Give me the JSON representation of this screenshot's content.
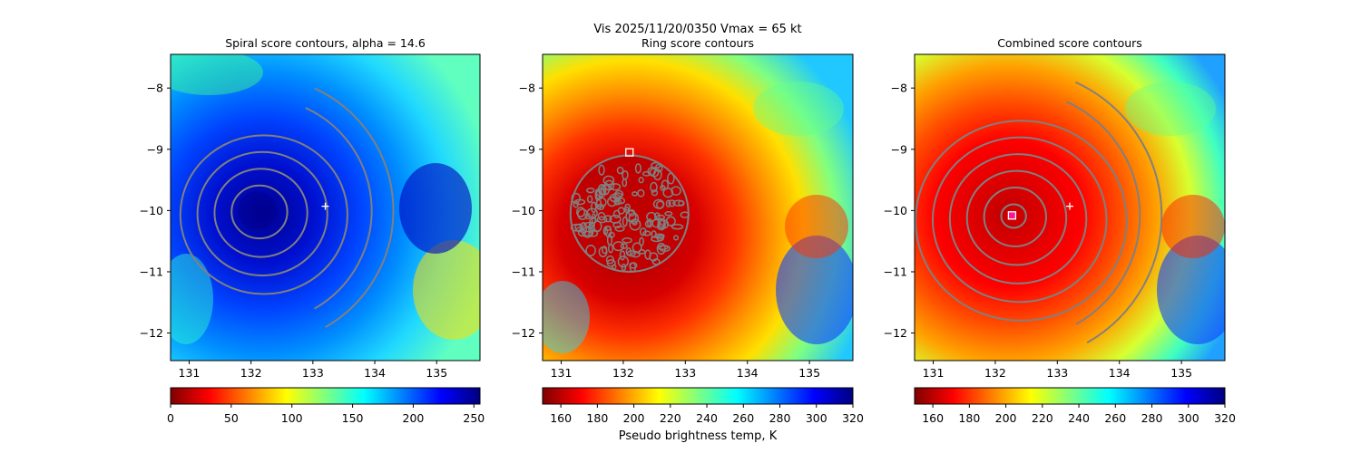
{
  "figure": {
    "suptitle_line1": "Vis  2025/11/20/0350    Vmax = 65 kt",
    "colorbar_label": "Pseudo brightness temp, K"
  },
  "colors": {
    "contour": "#808080",
    "marker": "#ffffff",
    "combined_center_marker": "#ff1493",
    "jet": [
      "#00007f",
      "#0000ff",
      "#007fff",
      "#00ffff",
      "#7fff7f",
      "#ffff00",
      "#ff7f00",
      "#ff0000",
      "#7f0000"
    ]
  },
  "chart_data": [
    {
      "type": "heatmap",
      "title": "Spiral score contours, alpha = 14.6",
      "xlim": [
        130.7,
        135.7
      ],
      "ylim": [
        -12.45,
        -7.45
      ],
      "xticks": [
        131,
        132,
        133,
        134,
        135
      ],
      "yticks": [
        -8,
        -9,
        -10,
        -11,
        -12
      ],
      "xtick_labels": [
        "131",
        "132",
        "133",
        "134",
        "135"
      ],
      "ytick_labels": [
        "−8",
        "−9",
        "−10",
        "−11",
        "−12"
      ],
      "center": [
        132.1,
        -10.0
      ],
      "contour_radii_deg": [
        0.45,
        0.75,
        1.05,
        1.35
      ],
      "outer_arcs_deg": [
        1.85,
        2.2
      ],
      "marker": {
        "type": "plus",
        "x": 133.2,
        "y": -9.93
      },
      "colormap": "jet_reversed_cold",
      "colorbar": {
        "min": 0,
        "max": 255,
        "ticks": [
          0,
          50,
          100,
          150,
          200,
          250
        ],
        "tick_labels": [
          "0",
          "50",
          "100",
          "150",
          "200",
          "250"
        ],
        "reversed": false
      }
    },
    {
      "type": "heatmap",
      "title": "Ring score contours",
      "xlim": [
        130.7,
        135.7
      ],
      "ylim": [
        -12.45,
        -7.45
      ],
      "xticks": [
        131,
        132,
        133,
        134,
        135
      ],
      "yticks": [
        -8,
        -9,
        -10,
        -11,
        -12
      ],
      "xtick_labels": [
        "131",
        "132",
        "133",
        "134",
        "135"
      ],
      "ytick_labels": [
        "−8",
        "−9",
        "−10",
        "−11",
        "−12"
      ],
      "center": [
        132.1,
        -10.05
      ],
      "disc_radius_deg": 0.95,
      "marker": {
        "type": "square",
        "x": 132.1,
        "y": -9.05
      },
      "colorbar": {
        "min": 150,
        "max": 320,
        "ticks": [
          160,
          180,
          200,
          220,
          240,
          260,
          280,
          300,
          320
        ],
        "tick_labels": [
          "160",
          "180",
          "200",
          "220",
          "240",
          "260",
          "280",
          "300",
          "320"
        ],
        "reversed": true
      }
    },
    {
      "type": "heatmap",
      "title": "Combined score contours",
      "xlim": [
        130.7,
        135.7
      ],
      "ylim": [
        -12.45,
        -7.45
      ],
      "xticks": [
        131,
        132,
        133,
        134,
        135
      ],
      "yticks": [
        -8,
        -9,
        -10,
        -11,
        -12
      ],
      "xtick_labels": [
        "131",
        "132",
        "133",
        "134",
        "135"
      ],
      "ytick_labels": [
        "−8",
        "−9",
        "−10",
        "−11",
        "−12"
      ],
      "center": [
        132.28,
        -10.08
      ],
      "contour_radii_deg": [
        0.2,
        0.5,
        0.8,
        1.1,
        1.4,
        1.7
      ],
      "outer_arcs_deg": [
        2.05,
        2.4
      ],
      "marker": {
        "type": "plus",
        "x": 133.2,
        "y": -9.93
      },
      "center_marker": {
        "type": "square",
        "x": 132.27,
        "y": -10.08
      },
      "colorbar": {
        "min": 150,
        "max": 320,
        "ticks": [
          160,
          180,
          200,
          220,
          240,
          260,
          280,
          300,
          320
        ],
        "tick_labels": [
          "160",
          "180",
          "200",
          "220",
          "240",
          "260",
          "280",
          "300",
          "320"
        ],
        "reversed": true
      }
    }
  ]
}
